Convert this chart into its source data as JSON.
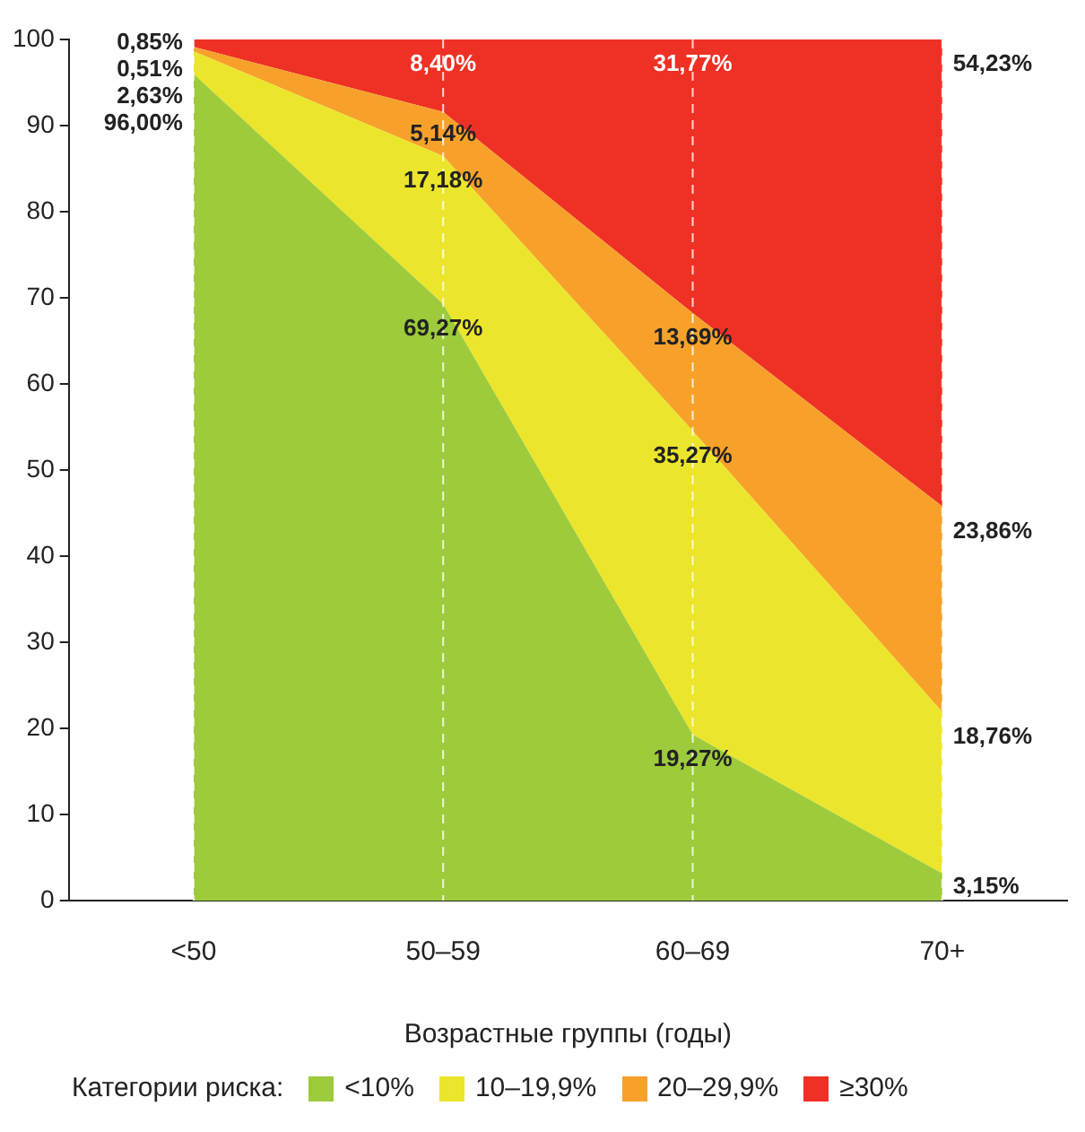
{
  "chart_data": {
    "type": "area",
    "stacked": true,
    "xlabel": "Возрастные группы (годы)",
    "legend_title": "Категории риска:",
    "legend": "bottom",
    "grid": "x",
    "categories": [
      "<50",
      "50–59",
      "60–69",
      "70+"
    ],
    "ylim": [
      0,
      100
    ],
    "yticks": [
      0,
      10,
      20,
      30,
      40,
      50,
      60,
      70,
      80,
      90,
      100
    ],
    "series": [
      {
        "name": "<10%",
        "color": "#9dcb3b",
        "values": [
          96.0,
          69.27,
          19.27,
          3.15
        ],
        "value_labels": [
          "96,00%",
          "69,27%",
          "19,27%",
          "3,15%"
        ]
      },
      {
        "name": "10–19,9%",
        "color": "#ebe62c",
        "values": [
          2.63,
          17.18,
          35.27,
          18.76
        ],
        "value_labels": [
          "2,63%",
          "17,18%",
          "35,27%",
          "18,76%"
        ]
      },
      {
        "name": "20–29,9%",
        "color": "#f7a12a",
        "values": [
          0.51,
          5.14,
          13.69,
          23.86
        ],
        "value_labels": [
          "0,51%",
          "5,14%",
          "13,69%",
          "23,86%"
        ]
      },
      {
        "name": "≥30%",
        "color": "#ee3124",
        "values": [
          0.85,
          8.4,
          31.77,
          54.23
        ],
        "value_labels": [
          "0,85%",
          "8,40%",
          "31,77%",
          "54,23%"
        ]
      }
    ]
  }
}
